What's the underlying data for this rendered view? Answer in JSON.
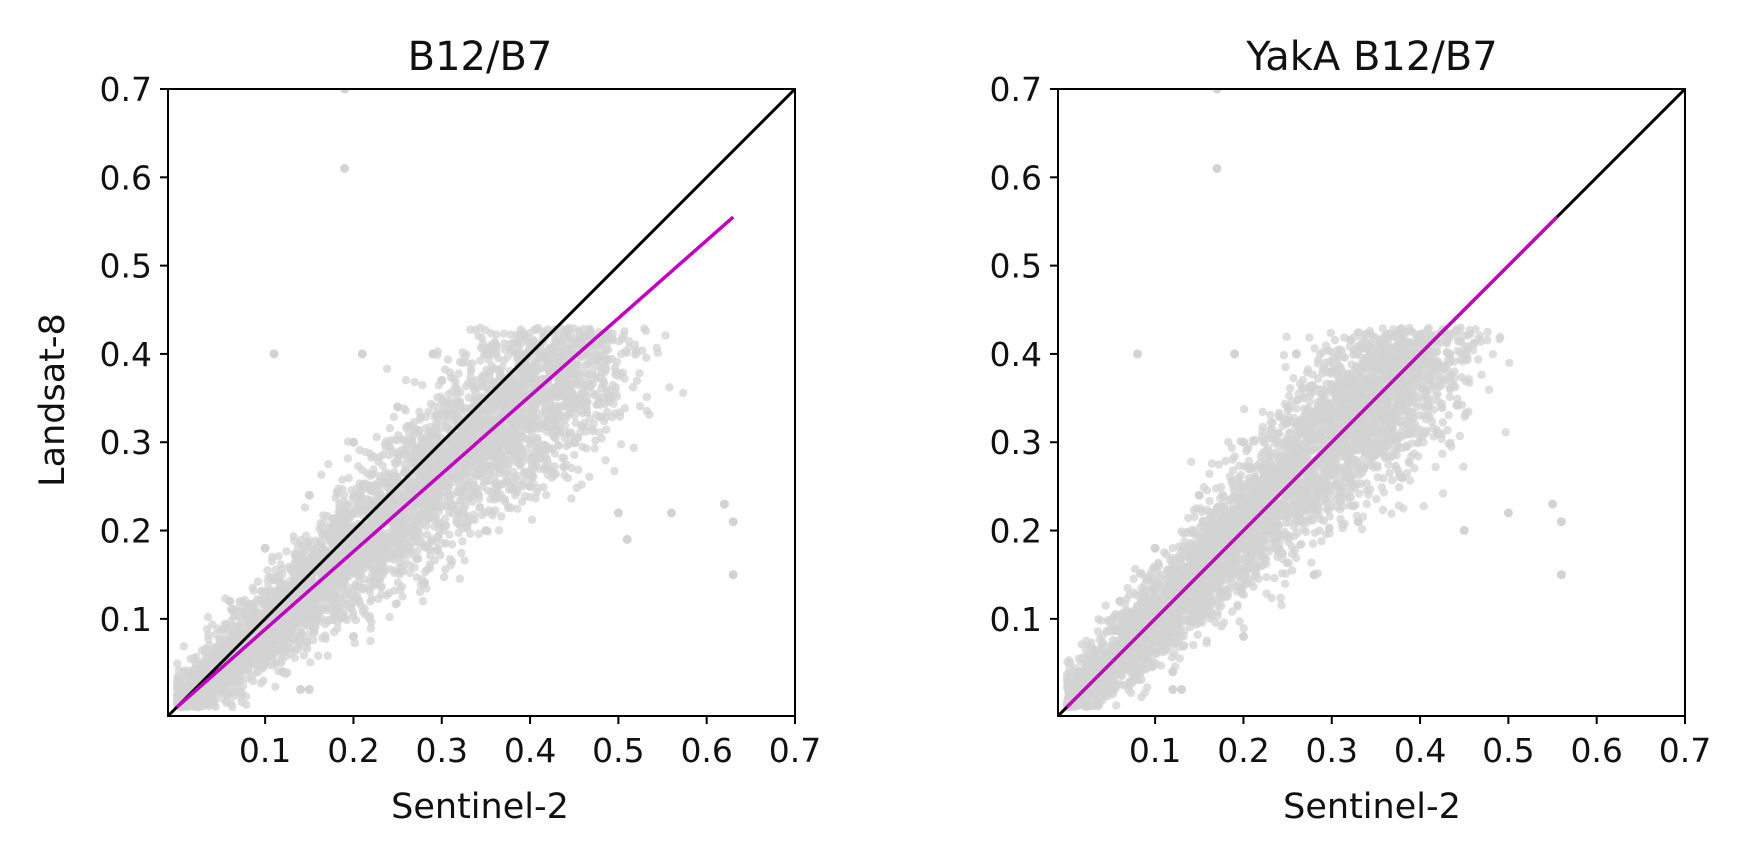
{
  "figure": {
    "colors": {
      "scatter": "#d3d3d3",
      "identity_line": "#000000",
      "fit_line": "#bf00bf",
      "frame": "#000000"
    }
  },
  "chart_data": [
    {
      "type": "scatter",
      "title": "B12/B7",
      "xlabel": "Sentinel-2",
      "ylabel": "Landsat-8",
      "xlim": [
        -0.01,
        0.7
      ],
      "ylim": [
        -0.01,
        0.7
      ],
      "xticks": [
        "0.1",
        "0.2",
        "0.3",
        "0.4",
        "0.5",
        "0.6",
        "0.7"
      ],
      "yticks": [
        "0.1",
        "0.2",
        "0.3",
        "0.4",
        "0.5",
        "0.6",
        "0.7"
      ],
      "grid": false,
      "series": [
        {
          "kind": "scatter",
          "color": "#d3d3d3",
          "description_points": "dense elongated cloud from ~(0,0) to ~(0.48,0.42)",
          "points": [
            [
              0.02,
              0.02
            ],
            [
              0.05,
              0.04
            ],
            [
              0.08,
              0.07
            ],
            [
              0.1,
              0.09
            ],
            [
              0.12,
              0.1
            ],
            [
              0.15,
              0.13
            ],
            [
              0.18,
              0.16
            ],
            [
              0.2,
              0.17
            ],
            [
              0.22,
              0.2
            ],
            [
              0.25,
              0.22
            ],
            [
              0.28,
              0.24
            ],
            [
              0.3,
              0.26
            ],
            [
              0.32,
              0.28
            ],
            [
              0.35,
              0.3
            ],
            [
              0.38,
              0.33
            ],
            [
              0.4,
              0.35
            ],
            [
              0.42,
              0.37
            ],
            [
              0.45,
              0.4
            ],
            [
              0.47,
              0.41
            ],
            [
              0.06,
              0.12
            ],
            [
              0.1,
              0.18
            ],
            [
              0.15,
              0.24
            ],
            [
              0.2,
              0.3
            ],
            [
              0.25,
              0.34
            ],
            [
              0.3,
              0.37
            ],
            [
              0.35,
              0.4
            ],
            [
              0.12,
              0.04
            ],
            [
              0.2,
              0.08
            ],
            [
              0.28,
              0.14
            ],
            [
              0.35,
              0.2
            ],
            [
              0.4,
              0.25
            ],
            [
              0.45,
              0.3
            ],
            [
              0.19,
              0.7
            ],
            [
              0.19,
              0.61
            ],
            [
              0.11,
              0.4
            ],
            [
              0.21,
              0.4
            ],
            [
              0.29,
              0.4
            ],
            [
              0.5,
              0.22
            ],
            [
              0.51,
              0.19
            ],
            [
              0.56,
              0.22
            ],
            [
              0.62,
              0.23
            ],
            [
              0.63,
              0.21
            ],
            [
              0.63,
              0.15
            ],
            [
              0.14,
              0.02
            ],
            [
              0.15,
              0.02
            ]
          ],
          "scatter_cloud": {
            "n": 4500,
            "x_range": [
              0.0,
              0.48
            ],
            "y_range": [
              0.0,
              0.43
            ]
          }
        },
        {
          "name": "",
          "kind": "line",
          "color": "#000000",
          "x": [
            -0.01,
            0.7
          ],
          "y": [
            -0.01,
            0.7
          ]
        },
        {
          "name": "",
          "kind": "line",
          "color": "#bf00bf",
          "x": [
            0.0,
            0.63
          ],
          "y": [
            0.0,
            0.555
          ]
        }
      ]
    },
    {
      "type": "scatter",
      "title": "YakA B12/B7",
      "xlabel": "Sentinel-2",
      "ylabel": "",
      "xlim": [
        -0.01,
        0.7
      ],
      "ylim": [
        -0.01,
        0.7
      ],
      "xticks": [
        "0.1",
        "0.2",
        "0.3",
        "0.4",
        "0.5",
        "0.6",
        "0.7"
      ],
      "yticks": [
        "0.1",
        "0.2",
        "0.3",
        "0.4",
        "0.5",
        "0.6",
        "0.7"
      ],
      "grid": false,
      "series": [
        {
          "kind": "scatter",
          "color": "#d3d3d3",
          "points": [
            [
              0.02,
              0.02
            ],
            [
              0.05,
              0.04
            ],
            [
              0.08,
              0.07
            ],
            [
              0.1,
              0.09
            ],
            [
              0.15,
              0.14
            ],
            [
              0.2,
              0.19
            ],
            [
              0.25,
              0.24
            ],
            [
              0.3,
              0.29
            ],
            [
              0.35,
              0.34
            ],
            [
              0.38,
              0.37
            ],
            [
              0.41,
              0.4
            ],
            [
              0.06,
              0.12
            ],
            [
              0.1,
              0.18
            ],
            [
              0.15,
              0.24
            ],
            [
              0.2,
              0.3
            ],
            [
              0.25,
              0.34
            ],
            [
              0.3,
              0.38
            ],
            [
              0.12,
              0.04
            ],
            [
              0.2,
              0.08
            ],
            [
              0.28,
              0.15
            ],
            [
              0.33,
              0.21
            ],
            [
              0.38,
              0.26
            ],
            [
              0.42,
              0.31
            ],
            [
              0.17,
              0.7
            ],
            [
              0.17,
              0.61
            ],
            [
              0.08,
              0.4
            ],
            [
              0.19,
              0.4
            ],
            [
              0.26,
              0.4
            ],
            [
              0.45,
              0.2
            ],
            [
              0.5,
              0.22
            ],
            [
              0.55,
              0.23
            ],
            [
              0.56,
              0.21
            ],
            [
              0.56,
              0.15
            ],
            [
              0.12,
              0.02
            ],
            [
              0.13,
              0.02
            ]
          ],
          "scatter_cloud": {
            "n": 4500,
            "x_range": [
              0.0,
              0.42
            ],
            "y_range": [
              0.0,
              0.43
            ]
          }
        },
        {
          "name": "",
          "kind": "line",
          "color": "#000000",
          "x": [
            -0.01,
            0.7
          ],
          "y": [
            -0.01,
            0.7
          ]
        },
        {
          "name": "",
          "kind": "line",
          "color": "#bf00bf",
          "x": [
            0.0,
            0.555
          ],
          "y": [
            0.0,
            0.555
          ]
        }
      ]
    }
  ]
}
